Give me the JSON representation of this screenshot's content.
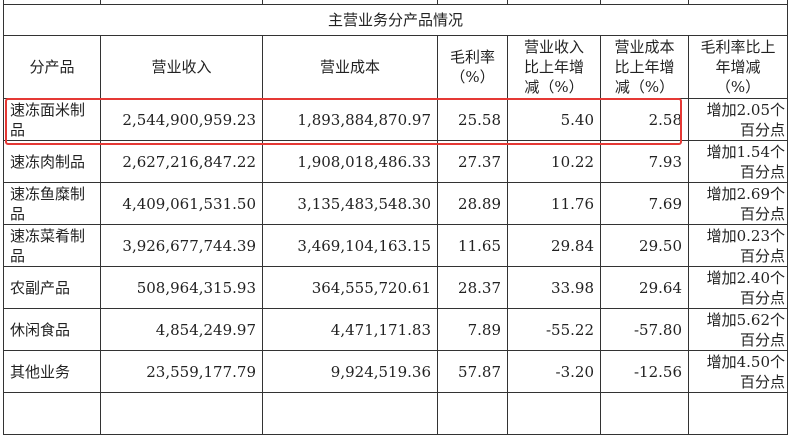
{
  "table": {
    "title": "主营业务分产品情况",
    "headers": [
      "分产品",
      "营业收入",
      "营业成本",
      "毛利率（%）",
      "营业收入比上年增减（%）",
      "营业成本比上年增减（%）",
      "毛利率比上年增减（%）"
    ],
    "rows": [
      [
        "速冻面米制品",
        "2,544,900,959.23",
        "1,893,884,870.97",
        "25.58",
        "5.40",
        "2.58",
        "增加2.05个百分点"
      ],
      [
        "速冻肉制品",
        "2,627,216,847.22",
        "1,908,018,486.33",
        "27.37",
        "10.22",
        "7.93",
        "增加1.54个百分点"
      ],
      [
        "速冻鱼糜制品",
        "4,409,061,531.50",
        "3,135,483,548.30",
        "28.89",
        "11.76",
        "7.69",
        "增加2.69个百分点"
      ],
      [
        "速冻菜肴制品",
        "3,926,677,744.39",
        "3,469,104,163.15",
        "11.65",
        "29.84",
        "29.50",
        "增加0.23个百分点"
      ],
      [
        "农副产品",
        "508,964,315.93",
        "364,555,720.61",
        "28.37",
        "33.98",
        "29.64",
        "增加2.40个百分点"
      ],
      [
        "休闲食品",
        "4,854,249.97",
        "4,471,171.83",
        "7.89",
        "-55.22",
        "-57.80",
        "增加5.62个百分点"
      ],
      [
        "其他业务",
        "23,559,177.79",
        "9,924,519.36",
        "57.87",
        "-3.20",
        "-12.56",
        "增加4.50个百分点"
      ]
    ],
    "highlighted_row": 0,
    "highlight_color": "#e53935"
  }
}
